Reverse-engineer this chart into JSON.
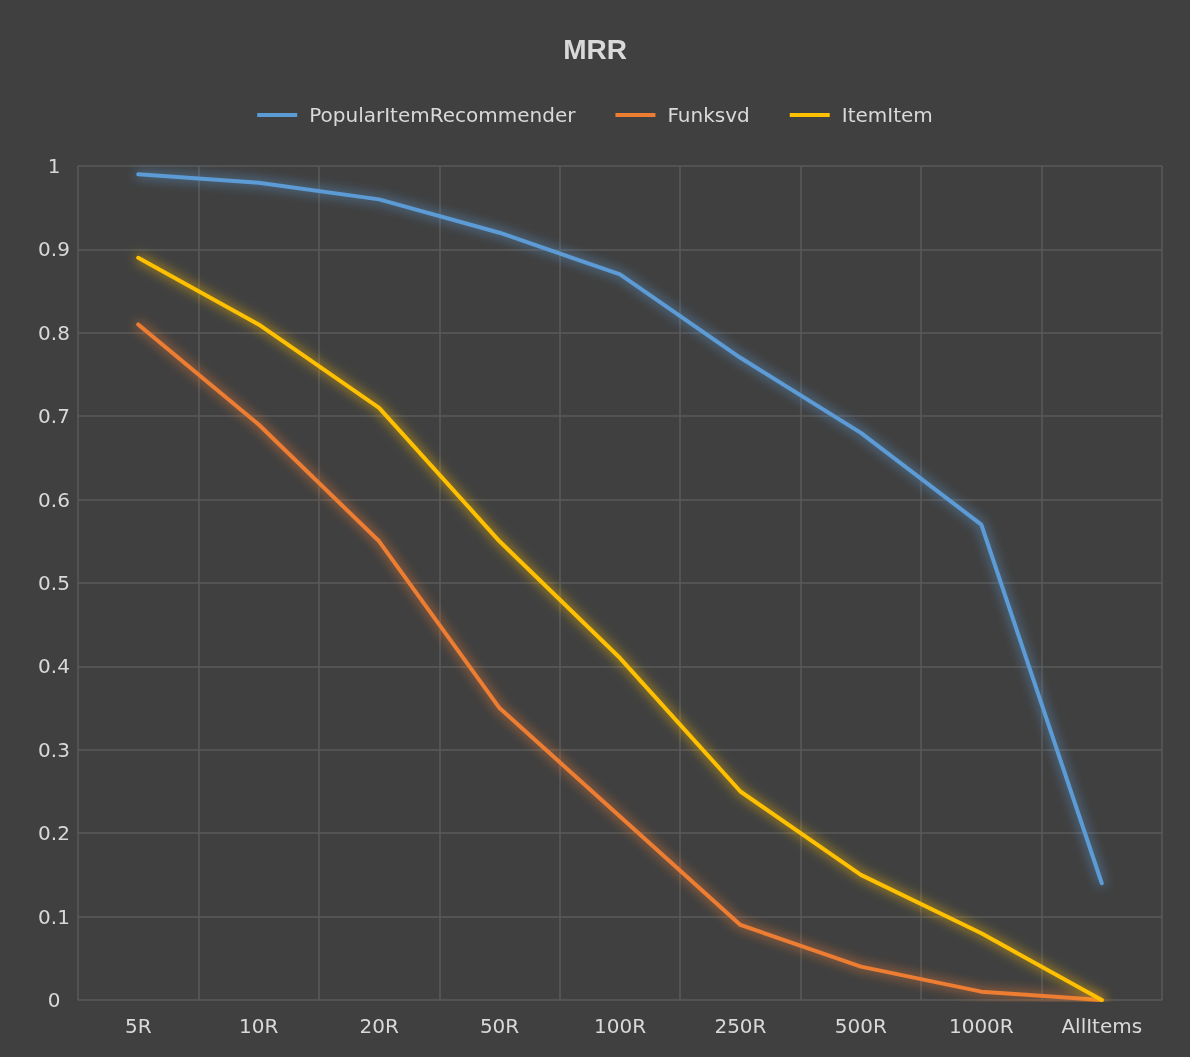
{
  "chart_data": {
    "type": "line",
    "title": "MRR",
    "categories": [
      "5R",
      "10R",
      "20R",
      "50R",
      "100R",
      "250R",
      "500R",
      "1000R",
      "AllItems"
    ],
    "series": [
      {
        "name": "PopularItemRecommender",
        "color": "#5b9bd5",
        "values": [
          0.99,
          0.98,
          0.96,
          0.92,
          0.87,
          0.77,
          0.68,
          0.57,
          0.14
        ]
      },
      {
        "name": "Funksvd",
        "color": "#ed7d31",
        "values": [
          0.81,
          0.69,
          0.55,
          0.35,
          0.22,
          0.09,
          0.04,
          0.01,
          0.0
        ]
      },
      {
        "name": "ItemItem",
        "color": "#ffc000",
        "values": [
          0.89,
          0.81,
          0.71,
          0.55,
          0.41,
          0.25,
          0.15,
          0.08,
          0.0
        ]
      }
    ],
    "ylim": [
      0,
      1
    ],
    "yticks": [
      0,
      0.1,
      0.2,
      0.3,
      0.4,
      0.5,
      0.6,
      0.7,
      0.8,
      0.9,
      1
    ],
    "grid": true,
    "legend": "top",
    "marker": "none",
    "line_style": "solid"
  }
}
